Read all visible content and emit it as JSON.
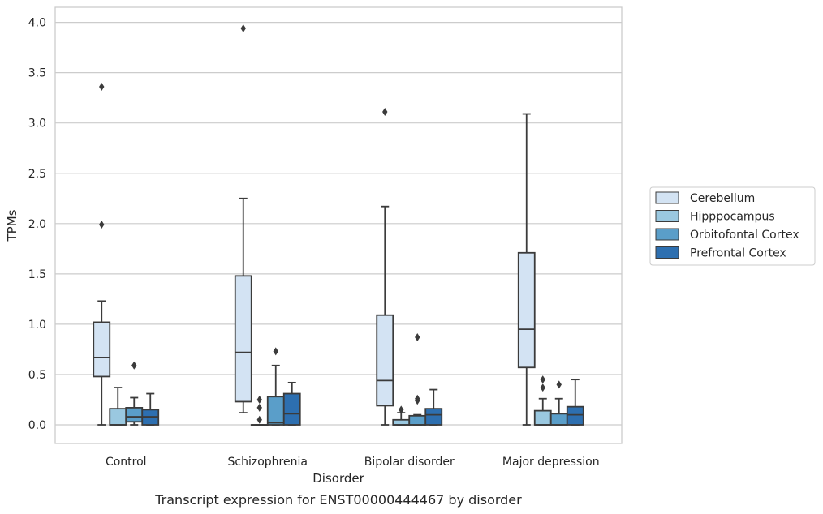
{
  "chart_data": {
    "type": "box",
    "caption": "Transcript expression for ENST00000444467 by disorder",
    "xlabel": "Disorder",
    "ylabel": "TPMs",
    "ylim": [
      -0.19,
      4.15
    ],
    "yticks": [
      0.0,
      0.5,
      1.0,
      1.5,
      2.0,
      2.5,
      3.0,
      3.5,
      4.0
    ],
    "ytick_labels": [
      "0.0",
      "0.5",
      "1.0",
      "1.5",
      "2.0",
      "2.5",
      "3.0",
      "3.5",
      "4.0"
    ],
    "grid": "horizontal",
    "legend_position": "right",
    "categories": [
      "Control",
      "Schizophrenia",
      "Bipolar disorder",
      "Major depression"
    ],
    "series": [
      {
        "name": "Cerebellum",
        "color": "#d3e3f3",
        "boxes": [
          {
            "whislo": 0.0,
            "q1": 0.48,
            "med": 0.67,
            "q3": 1.02,
            "whishi": 1.23,
            "fliers": [
              1.99,
              3.36
            ]
          },
          {
            "whislo": 0.12,
            "q1": 0.23,
            "med": 0.72,
            "q3": 1.48,
            "whishi": 2.25,
            "fliers": [
              3.94
            ]
          },
          {
            "whislo": 0.0,
            "q1": 0.19,
            "med": 0.44,
            "q3": 1.09,
            "whishi": 2.17,
            "fliers": [
              3.11
            ]
          },
          {
            "whislo": 0.0,
            "q1": 0.57,
            "med": 0.95,
            "q3": 1.71,
            "whishi": 3.09,
            "fliers": []
          }
        ]
      },
      {
        "name": "Hipppocampus",
        "color": "#9ac8e0",
        "boxes": [
          {
            "whislo": 0.0,
            "q1": 0.0,
            "med": 0.0,
            "q3": 0.16,
            "whishi": 0.37,
            "fliers": []
          },
          {
            "whislo": 0.0,
            "q1": 0.0,
            "med": 0.0,
            "q3": 0.0,
            "whishi": 0.0,
            "fliers": [
              0.05,
              0.17,
              0.25
            ]
          },
          {
            "whislo": 0.0,
            "q1": 0.0,
            "med": 0.0,
            "q3": 0.05,
            "whishi": 0.12,
            "fliers": [
              0.15
            ]
          },
          {
            "whislo": 0.0,
            "q1": 0.0,
            "med": 0.0,
            "q3": 0.14,
            "whishi": 0.26,
            "fliers": [
              0.37,
              0.45
            ]
          }
        ]
      },
      {
        "name": "Orbitofontal Cortex",
        "color": "#5a9ec9",
        "boxes": [
          {
            "whislo": 0.0,
            "q1": 0.03,
            "med": 0.08,
            "q3": 0.17,
            "whishi": 0.27,
            "fliers": [
              0.59
            ]
          },
          {
            "whislo": 0.0,
            "q1": 0.0,
            "med": 0.02,
            "q3": 0.28,
            "whishi": 0.59,
            "fliers": [
              0.73
            ]
          },
          {
            "whislo": 0.0,
            "q1": 0.0,
            "med": 0.0,
            "q3": 0.09,
            "whishi": 0.1,
            "fliers": [
              0.24,
              0.26,
              0.87
            ]
          },
          {
            "whislo": 0.0,
            "q1": 0.0,
            "med": 0.0,
            "q3": 0.11,
            "whishi": 0.26,
            "fliers": [
              0.4
            ]
          }
        ]
      },
      {
        "name": "Prefrontal Cortex",
        "color": "#2d6fb0",
        "boxes": [
          {
            "whislo": 0.0,
            "q1": 0.0,
            "med": 0.08,
            "q3": 0.15,
            "whishi": 0.31,
            "fliers": []
          },
          {
            "whislo": 0.0,
            "q1": 0.0,
            "med": 0.11,
            "q3": 0.31,
            "whishi": 0.42,
            "fliers": []
          },
          {
            "whislo": 0.0,
            "q1": 0.0,
            "med": 0.1,
            "q3": 0.16,
            "whishi": 0.35,
            "fliers": []
          },
          {
            "whislo": 0.0,
            "q1": 0.0,
            "med": 0.1,
            "q3": 0.18,
            "whishi": 0.45,
            "fliers": []
          }
        ]
      }
    ]
  }
}
